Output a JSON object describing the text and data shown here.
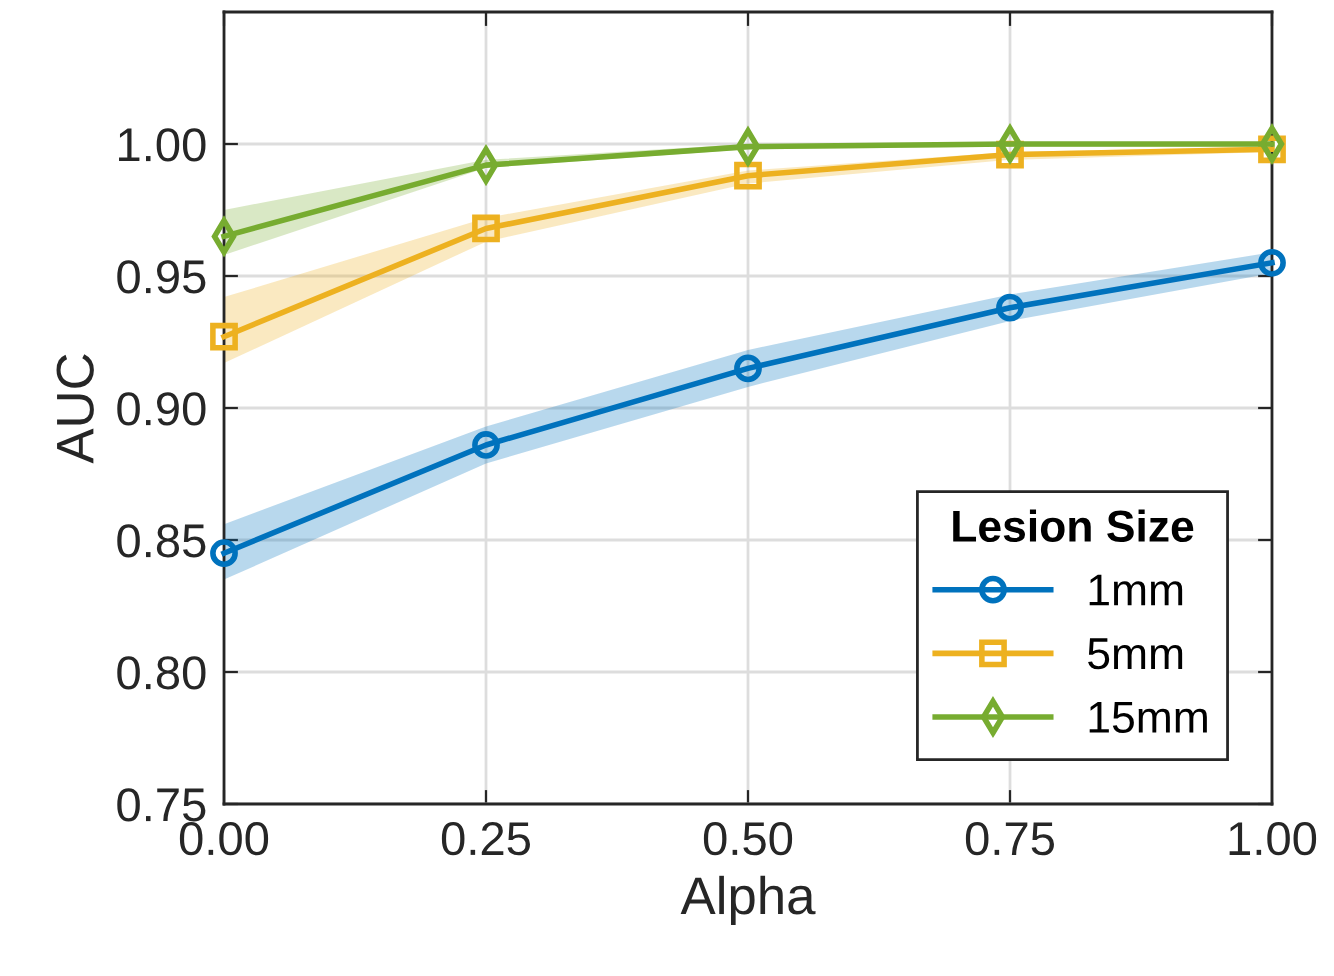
{
  "chart_data": {
    "type": "line",
    "xlabel": "Alpha",
    "ylabel": "AUC",
    "legend_title": "Lesion Size",
    "x": [
      0,
      0.25,
      0.5,
      0.75,
      1
    ],
    "series": [
      {
        "name": "1mm",
        "color": "#0072bd",
        "marker": "circle",
        "values": [
          0.845,
          0.886,
          0.915,
          0.938,
          0.955
        ],
        "lower": [
          0.835,
          0.879,
          0.908,
          0.933,
          0.951
        ],
        "upper": [
          0.856,
          0.893,
          0.922,
          0.943,
          0.959
        ]
      },
      {
        "name": "5mm",
        "color": "#edb120",
        "marker": "square",
        "values": [
          0.927,
          0.968,
          0.988,
          0.996,
          0.998
        ],
        "lower": [
          0.917,
          0.963,
          0.985,
          0.994,
          0.997
        ],
        "upper": [
          0.942,
          0.972,
          0.99,
          0.997,
          0.999
        ]
      },
      {
        "name": "15mm",
        "color": "#77ac30",
        "marker": "diamond",
        "values": [
          0.965,
          0.992,
          0.999,
          1.0,
          1.0
        ],
        "lower": [
          0.958,
          0.991,
          0.998,
          0.999,
          0.999
        ],
        "upper": [
          0.975,
          0.994,
          1.0,
          1.0,
          1.0
        ]
      }
    ],
    "xlim": [
      0,
      1
    ],
    "ylim": [
      0.75,
      1.05
    ],
    "xticks": [
      {
        "value": 0,
        "label": "0.00"
      },
      {
        "value": 0.25,
        "label": "0.25"
      },
      {
        "value": 0.5,
        "label": "0.50"
      },
      {
        "value": 0.75,
        "label": "0.75"
      },
      {
        "value": 1,
        "label": "1.00"
      }
    ],
    "yticks": [
      {
        "value": 0.75,
        "label": "0.75"
      },
      {
        "value": 0.8,
        "label": "0.80"
      },
      {
        "value": 0.85,
        "label": "0.85"
      },
      {
        "value": 0.9,
        "label": "0.90"
      },
      {
        "value": 0.95,
        "label": "0.95"
      },
      {
        "value": 1.0,
        "label": "1.00"
      }
    ],
    "grid": true,
    "legend": "bottom right",
    "line_style": "solid"
  }
}
